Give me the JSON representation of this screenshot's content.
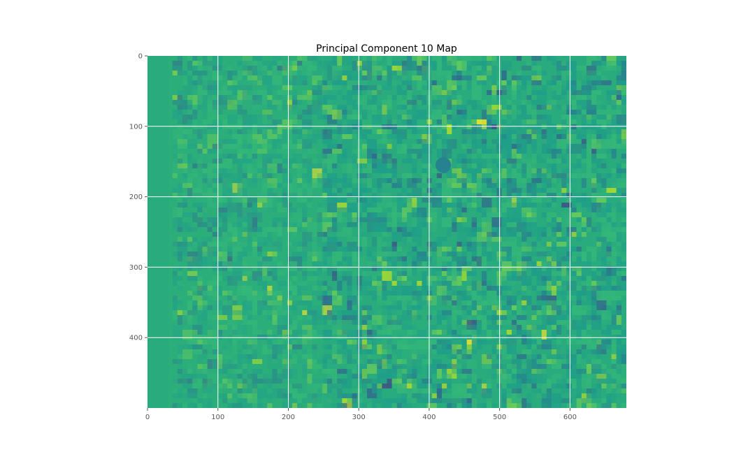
{
  "chart_data": {
    "type": "heatmap",
    "title": "Principal Component 10 Map",
    "xlabel": "",
    "ylabel": "",
    "xlim": [
      0,
      680
    ],
    "ylim": [
      500,
      0
    ],
    "x_ticks": [
      0,
      100,
      200,
      300,
      400,
      500,
      600
    ],
    "y_ticks": [
      0,
      100,
      200,
      300,
      400
    ],
    "grid": true,
    "colormap": "viridis",
    "base_color": "#2aab7d",
    "palette": [
      "#3e4a89",
      "#31688e",
      "#26828e",
      "#1f9e89",
      "#2aab7d",
      "#35b779",
      "#6ece58",
      "#b5de2b",
      "#fde725"
    ],
    "features": [
      {
        "shape": "circle",
        "cx": 420,
        "cy": 155,
        "r": 11,
        "color": "#26828e"
      },
      {
        "shape": "rect",
        "x0": 320,
        "y0": 360,
        "x1": 400,
        "y1": 440,
        "color": "#35b779"
      },
      {
        "shape": "rect",
        "x0": 30,
        "y0": 0,
        "x1": 250,
        "y1": 500,
        "color": "#35b779"
      }
    ]
  }
}
